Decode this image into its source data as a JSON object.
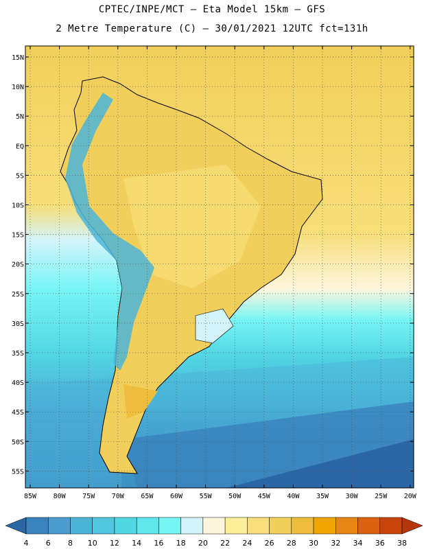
{
  "header": {
    "line1": "CPTEC/INPE/MCT –  Eta Model 15km – GFS",
    "line2": "2 Metre Temperature (C) – 30/01/2021 12UTC fct=131h"
  },
  "axes": {
    "lat_labels": [
      "15N",
      "10N",
      "5N",
      "EQ",
      "5S",
      "10S",
      "15S",
      "20S",
      "25S",
      "30S",
      "35S",
      "40S",
      "45S",
      "50S",
      "55S"
    ],
    "lon_labels": [
      "85W",
      "80W",
      "75W",
      "70W",
      "65W",
      "60W",
      "55W",
      "50W",
      "45W",
      "40W",
      "35W",
      "30W",
      "25W",
      "20W"
    ]
  },
  "colorbar": {
    "values": [
      "4",
      "6",
      "8",
      "10",
      "12",
      "14",
      "16",
      "18",
      "20",
      "22",
      "24",
      "26",
      "28",
      "30",
      "32",
      "34",
      "36",
      "38"
    ],
    "colors": [
      "#2b66a6",
      "#3a82bd",
      "#4a9ccf",
      "#4bb5d8",
      "#50c6df",
      "#52d6e4",
      "#5fe7ec",
      "#77f5f5",
      "#d2f4fa",
      "#fdf6dd",
      "#fdef9a",
      "#f7de78",
      "#f2cf5a",
      "#eebd3e",
      "#f0a600",
      "#e78515",
      "#dc6210",
      "#c8440c",
      "#b5350a"
    ]
  }
}
